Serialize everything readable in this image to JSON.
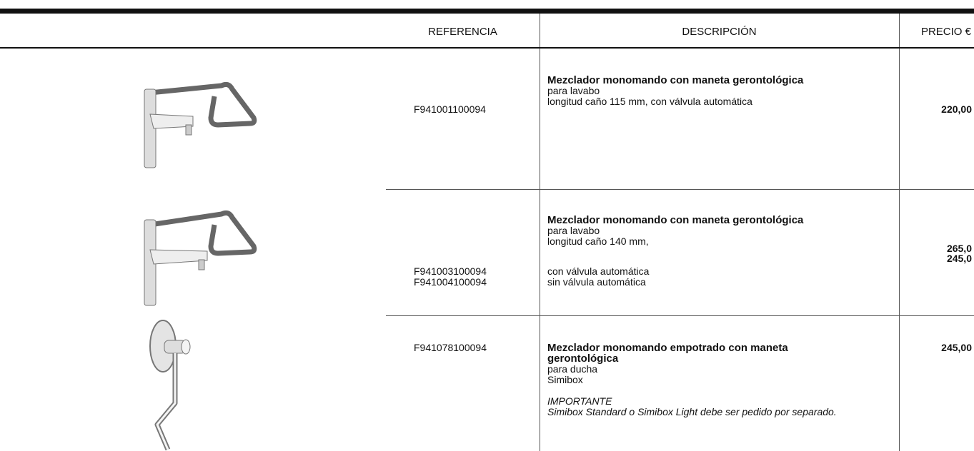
{
  "table": {
    "headers": [
      "REFERENCIA",
      "DESCRIPCIÓN",
      "PRECIO €"
    ],
    "rows": [
      {
        "references": [
          "F941001100094"
        ],
        "title": "Mezclador monomando con maneta gerontológica",
        "lines": [
          "para lavabo",
          "longitud caño 115 mm, con válvula automática"
        ],
        "prices": [
          "220,00"
        ]
      },
      {
        "references": [
          "F941003100094",
          "F941004100094"
        ],
        "title": "Mezclador monomando con maneta gerontológica",
        "lines": [
          "para lavabo",
          "longitud caño 140 mm,"
        ],
        "options": [
          "con válvula automática",
          "sin válvula automática"
        ],
        "prices": [
          "265,0",
          "245,0"
        ]
      },
      {
        "references": [
          "F941078100094"
        ],
        "title": "Mezclador monomando empotrado con maneta gerontológica",
        "lines": [
          "para ducha",
          "Simibox"
        ],
        "note_title": "IMPORTANTE",
        "note": "Simibox Standard o Simibox Light debe ser pedido por separado.",
        "prices": [
          "245,00"
        ]
      }
    ]
  }
}
